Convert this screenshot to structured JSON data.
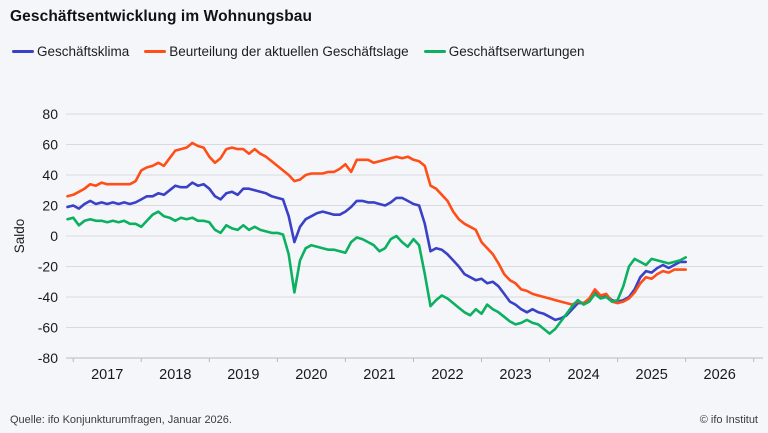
{
  "title": "Geschäftsentwicklung im Wohnungsbau",
  "footer": {
    "source": "Quelle: ifo Konjunkturumfragen,  Januar 2026.",
    "copyright": "© ifo Institut"
  },
  "chart_data": {
    "type": "line",
    "title": "Geschäftsentwicklung im Wohnungsbau",
    "x_start": "2016-12",
    "x_end": "2026-01",
    "x_freq": "monthly",
    "year_labels": [
      "2017",
      "2018",
      "2019",
      "2020",
      "2021",
      "2022",
      "2023",
      "2024",
      "2025",
      "2026"
    ],
    "ylabel": "Saldo",
    "ylim": [
      -80,
      80
    ],
    "yticks": [
      80,
      60,
      40,
      20,
      0,
      -20,
      -40,
      -60,
      -80
    ],
    "grid": true,
    "legend_position": "top",
    "series": [
      {
        "name": "Geschäftsklima",
        "color": "#3a41c6",
        "values": [
          19,
          20,
          18,
          21,
          23,
          21,
          22,
          21,
          22,
          21,
          22,
          21,
          22,
          24,
          26,
          26,
          28,
          27,
          30,
          33,
          32,
          32,
          35,
          33,
          34,
          31,
          26,
          24,
          28,
          29,
          27,
          31,
          31,
          30,
          29,
          28,
          26,
          25,
          24,
          13,
          -4,
          6,
          11,
          13,
          15,
          16,
          15,
          14,
          14,
          16,
          19,
          23,
          23,
          22,
          22,
          21,
          20,
          22,
          25,
          25,
          23,
          21,
          20,
          8,
          -10,
          -8,
          -9,
          -12,
          -16,
          -20,
          -25,
          -27,
          -29,
          -28,
          -31,
          -30,
          -33,
          -38,
          -43,
          -45,
          -48,
          -50,
          -48,
          -50,
          -51,
          -53,
          -55,
          -54,
          -52,
          -48,
          -44,
          -44,
          -42,
          -37,
          -40,
          -39,
          -42,
          -43,
          -42,
          -40,
          -35,
          -27,
          -23,
          -24,
          -21,
          -19,
          -21,
          -19,
          -17,
          -17
        ]
      },
      {
        "name": "Beurteilung der aktuellen Geschäftslage",
        "color": "#ff4e17",
        "values": [
          26,
          27,
          29,
          31,
          34,
          33,
          35,
          34,
          34,
          34,
          34,
          34,
          36,
          43,
          45,
          46,
          48,
          46,
          51,
          56,
          57,
          58,
          61,
          59,
          58,
          52,
          48,
          51,
          57,
          58,
          57,
          57,
          54,
          57,
          54,
          52,
          49,
          46,
          43,
          40,
          36,
          37,
          40,
          41,
          41,
          41,
          42,
          42,
          44,
          47,
          42,
          50,
          50,
          50,
          48,
          49,
          50,
          51,
          52,
          51,
          52,
          50,
          49,
          46,
          33,
          31,
          27,
          23,
          16,
          11,
          8,
          6,
          4,
          -4,
          -8,
          -12,
          -18,
          -25,
          -29,
          -31,
          -35,
          -36,
          -38,
          -39,
          -40,
          -41,
          -42,
          -43,
          -44,
          -45,
          -43,
          -44,
          -41,
          -35,
          -39,
          -38,
          -43,
          -44,
          -43,
          -41,
          -37,
          -31,
          -27,
          -28,
          -25,
          -23,
          -24,
          -22,
          -22,
          -22
        ]
      },
      {
        "name": "Geschäftserwartungen",
        "color": "#0cb061",
        "values": [
          11,
          12,
          7,
          10,
          11,
          10,
          10,
          9,
          10,
          9,
          10,
          8,
          8,
          6,
          10,
          14,
          16,
          13,
          12,
          10,
          12,
          11,
          12,
          10,
          10,
          9,
          4,
          2,
          7,
          5,
          4,
          7,
          4,
          6,
          4,
          3,
          2,
          2,
          1,
          -12,
          -37,
          -16,
          -8,
          -6,
          -7,
          -8,
          -9,
          -9,
          -10,
          -11,
          -4,
          -1,
          -2,
          -4,
          -6,
          -10,
          -8,
          -2,
          0,
          -4,
          -7,
          -2,
          -6,
          -25,
          -46,
          -42,
          -39,
          -41,
          -44,
          -47,
          -50,
          -52,
          -48,
          -51,
          -45,
          -48,
          -50,
          -53,
          -56,
          -58,
          -57,
          -55,
          -57,
          -58,
          -61,
          -64,
          -61,
          -56,
          -51,
          -46,
          -42,
          -45,
          -43,
          -38,
          -41,
          -40,
          -43,
          -42,
          -33,
          -20,
          -15,
          -17,
          -19,
          -15,
          -16,
          -17,
          -18,
          -17,
          -16,
          -14
        ]
      }
    ]
  }
}
